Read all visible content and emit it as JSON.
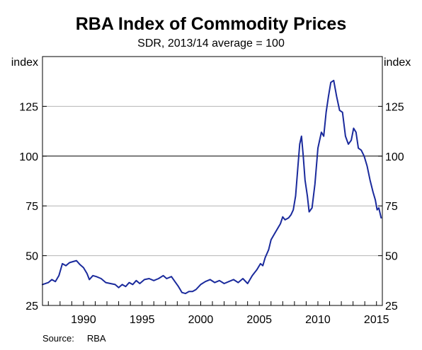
{
  "title": "RBA Index of Commodity Prices",
  "subtitle": "SDR, 2013/14 average = 100",
  "source_label": "Source:",
  "source_value": "RBA",
  "colors": {
    "line": "#1a2a9c",
    "grid": "#b4b4b4",
    "reference": "#000000"
  },
  "chart_data": {
    "type": "line",
    "title": "RBA Index of Commodity Prices",
    "subtitle": "SDR, 2013/14 average = 100",
    "ylabel_left": "index",
    "ylabel_right": "index",
    "ylim": [
      25,
      150
    ],
    "yticks": [
      25,
      50,
      75,
      100,
      125
    ],
    "xlim": [
      1986.5,
      2015.5
    ],
    "xticks": [
      1990,
      1995,
      2000,
      2005,
      2010,
      2015
    ],
    "reference_line": 100,
    "grid": true,
    "series": [
      {
        "points": [
          [
            1986.5,
            35.5
          ],
          [
            1987.0,
            36.5
          ],
          [
            1987.3,
            38.0
          ],
          [
            1987.6,
            37.0
          ],
          [
            1987.9,
            40.0
          ],
          [
            1988.2,
            46.0
          ],
          [
            1988.5,
            45.0
          ],
          [
            1988.8,
            46.5
          ],
          [
            1989.1,
            47.0
          ],
          [
            1989.4,
            47.5
          ],
          [
            1989.7,
            45.5
          ],
          [
            1990.0,
            44.0
          ],
          [
            1990.3,
            41.0
          ],
          [
            1990.5,
            38.0
          ],
          [
            1990.8,
            40.0
          ],
          [
            1991.1,
            39.5
          ],
          [
            1991.5,
            38.5
          ],
          [
            1991.9,
            36.5
          ],
          [
            1992.3,
            36.0
          ],
          [
            1992.7,
            35.5
          ],
          [
            1993.0,
            34.0
          ],
          [
            1993.3,
            35.5
          ],
          [
            1993.6,
            34.5
          ],
          [
            1993.9,
            36.5
          ],
          [
            1994.2,
            35.5
          ],
          [
            1994.5,
            37.5
          ],
          [
            1994.8,
            36.0
          ],
          [
            1995.2,
            38.0
          ],
          [
            1995.6,
            38.5
          ],
          [
            1996.0,
            37.5
          ],
          [
            1996.4,
            38.5
          ],
          [
            1996.8,
            40.0
          ],
          [
            1997.1,
            38.5
          ],
          [
            1997.5,
            39.5
          ],
          [
            1997.8,
            37.0
          ],
          [
            1998.1,
            34.5
          ],
          [
            1998.4,
            31.5
          ],
          [
            1998.7,
            31.0
          ],
          [
            1999.0,
            32.0
          ],
          [
            1999.3,
            32.0
          ],
          [
            1999.6,
            33.0
          ],
          [
            2000.0,
            35.5
          ],
          [
            2000.4,
            37.0
          ],
          [
            2000.8,
            38.0
          ],
          [
            2001.2,
            36.5
          ],
          [
            2001.6,
            37.5
          ],
          [
            2002.0,
            36.0
          ],
          [
            2002.4,
            37.0
          ],
          [
            2002.8,
            38.0
          ],
          [
            2003.2,
            36.5
          ],
          [
            2003.6,
            38.5
          ],
          [
            2004.0,
            36.0
          ],
          [
            2004.4,
            40.0
          ],
          [
            2004.8,
            43.0
          ],
          [
            2005.1,
            46.0
          ],
          [
            2005.3,
            45.0
          ],
          [
            2005.5,
            49.0
          ],
          [
            2005.8,
            53.0
          ],
          [
            2006.0,
            58.0
          ],
          [
            2006.3,
            61.0
          ],
          [
            2006.5,
            63.0
          ],
          [
            2006.8,
            66.0
          ],
          [
            2007.0,
            69.5
          ],
          [
            2007.2,
            68.0
          ],
          [
            2007.5,
            69.0
          ],
          [
            2007.7,
            70.5
          ],
          [
            2007.9,
            73.0
          ],
          [
            2008.1,
            80.0
          ],
          [
            2008.3,
            95.0
          ],
          [
            2008.45,
            106.0
          ],
          [
            2008.6,
            110.0
          ],
          [
            2008.75,
            100.0
          ],
          [
            2008.9,
            88.0
          ],
          [
            2009.1,
            80.0
          ],
          [
            2009.25,
            72.0
          ],
          [
            2009.5,
            74.0
          ],
          [
            2009.75,
            86.0
          ],
          [
            2010.0,
            104.0
          ],
          [
            2010.3,
            112.0
          ],
          [
            2010.5,
            110.0
          ],
          [
            2010.7,
            122.0
          ],
          [
            2010.9,
            130.0
          ],
          [
            2011.1,
            137.0
          ],
          [
            2011.35,
            138.0
          ],
          [
            2011.6,
            130.0
          ],
          [
            2011.85,
            123.0
          ],
          [
            2012.1,
            122.0
          ],
          [
            2012.35,
            110.0
          ],
          [
            2012.6,
            106.0
          ],
          [
            2012.85,
            108.0
          ],
          [
            2013.05,
            114.0
          ],
          [
            2013.25,
            112.0
          ],
          [
            2013.45,
            104.0
          ],
          [
            2013.7,
            103.0
          ],
          [
            2013.95,
            100.0
          ],
          [
            2014.2,
            95.0
          ],
          [
            2014.45,
            88.0
          ],
          [
            2014.7,
            82.0
          ],
          [
            2014.9,
            78.0
          ],
          [
            2015.05,
            73.0
          ],
          [
            2015.2,
            74.0
          ],
          [
            2015.4,
            69.0
          ]
        ]
      }
    ]
  }
}
